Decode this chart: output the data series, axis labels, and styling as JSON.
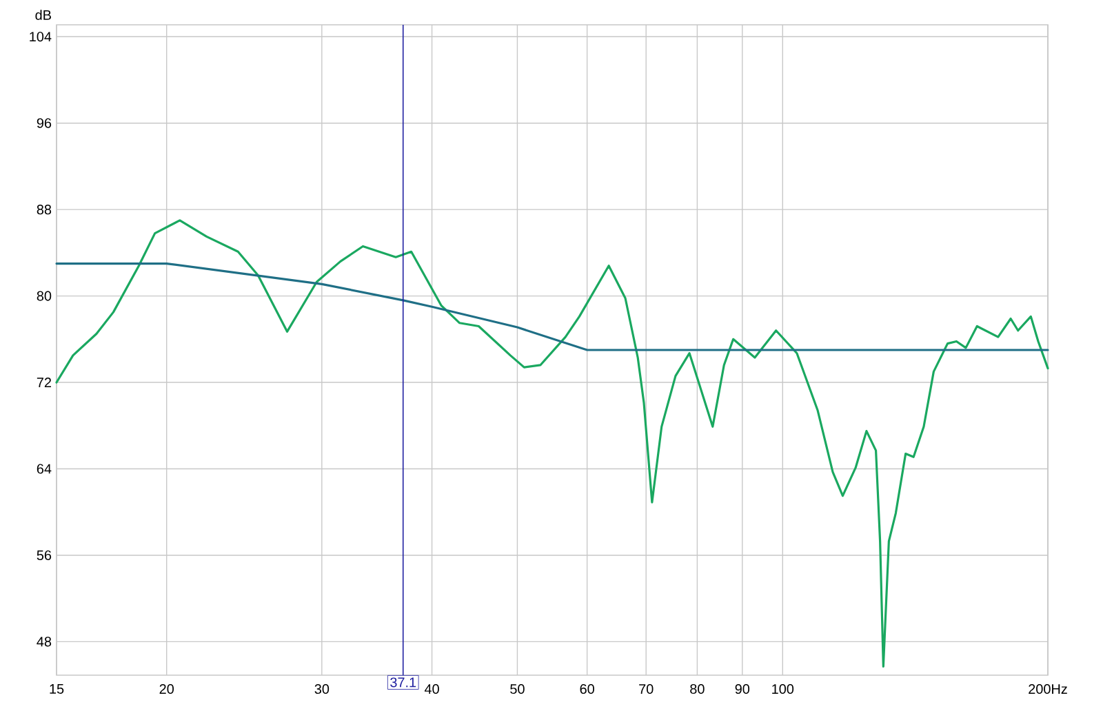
{
  "chart_data": {
    "type": "line",
    "ylabel": "dB",
    "log": "x",
    "xlim": [
      15,
      200
    ],
    "ylim": [
      44.9,
      105.1
    ],
    "xticks": [
      15,
      20,
      30,
      40,
      50,
      60,
      70,
      80,
      90,
      100,
      {
        "value": 200,
        "label": "200Hz"
      }
    ],
    "yticks": [
      48,
      56,
      64,
      72,
      80,
      88,
      96,
      104
    ],
    "grid": true,
    "series": [
      {
        "color": "#1aa860",
        "x": [
          15,
          15.66,
          16.65,
          17.4,
          18.6,
          19.4,
          20.7,
          22.2,
          24.1,
          25.4,
          27.4,
          29.6,
          31.5,
          33.4,
          36.4,
          37.9,
          41.0,
          43.0,
          45.2,
          49.1,
          50.9,
          53.1,
          56.7,
          58.8,
          63.5,
          66.3,
          68.5,
          69.6,
          71.1,
          72.9,
          75.6,
          78.4,
          83.3,
          85.8,
          87.9,
          93.0,
          98.3,
          103.8,
          109.6,
          114,
          117,
          121,
          124.5,
          127.6,
          129,
          130.1,
          132,
          134.4,
          137.9,
          140.8,
          144.6,
          148.4,
          153.9,
          157.5,
          161.4,
          166.2,
          175.6,
          181.5,
          185,
          191.3,
          195,
          200
        ],
        "values": [
          72.0,
          74.5,
          76.5,
          78.5,
          82.8,
          85.8,
          87.0,
          85.5,
          84.1,
          81.9,
          76.7,
          81.3,
          83.2,
          84.6,
          83.6,
          84.1,
          79.1,
          77.5,
          77.2,
          74.5,
          73.4,
          73.6,
          76.2,
          78.1,
          82.8,
          79.8,
          74.3,
          70.1,
          60.9,
          67.9,
          72.6,
          74.7,
          67.9,
          73.6,
          76.0,
          74.3,
          76.8,
          74.7,
          69.4,
          63.7,
          61.5,
          64.1,
          67.5,
          65.7,
          57.3,
          45.7,
          57.3,
          59.9,
          65.4,
          65.1,
          67.9,
          73.0,
          75.6,
          75.8,
          75.2,
          77.2,
          76.2,
          77.9,
          76.8,
          78.1,
          75.8,
          73.3
        ]
      },
      {
        "color": "#1f6f86",
        "x": [
          15,
          20,
          30,
          37.1,
          40,
          50,
          60,
          200
        ],
        "values": [
          83,
          83,
          81.1,
          79.6,
          79,
          77.1,
          75,
          75
        ]
      }
    ],
    "ref_lines": [
      {
        "axis": "x",
        "value": 37.1,
        "label": "37.1",
        "color": "#2020a0"
      }
    ]
  }
}
